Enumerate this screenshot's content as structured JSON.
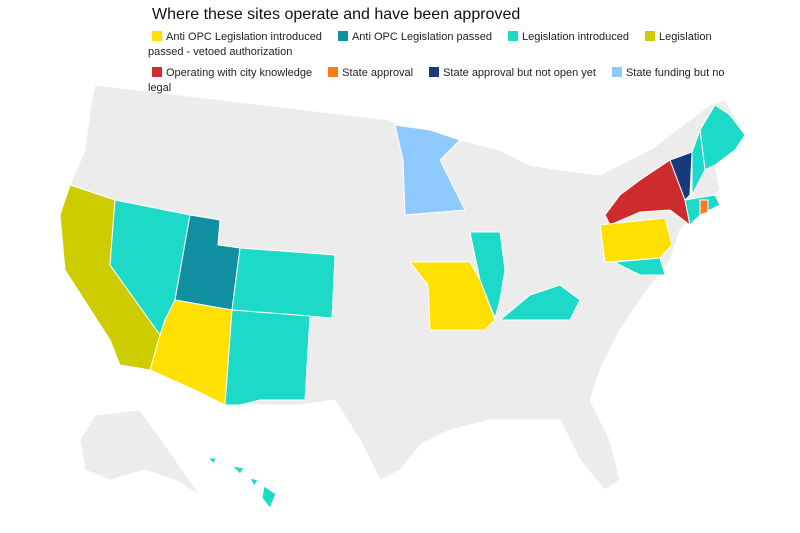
{
  "title": "Where these sites operate and have been approved",
  "legend": [
    {
      "label": "Anti OPC Legislation introduced",
      "color": "#ffe000"
    },
    {
      "label": "Anti OPC Legislation passed",
      "color": "#0f8fa0"
    },
    {
      "label": "Legislation introduced",
      "color": "#1dd9c8"
    },
    {
      "label": "Legislation passed - vetoed authorization",
      "color": "#cccc00"
    },
    {
      "label": "Operating with city knowledge",
      "color": "#cc2c2c"
    },
    {
      "label": "State approval",
      "color": "#ff7a1a"
    },
    {
      "label": "State approval but not open yet",
      "color": "#173a7a"
    },
    {
      "label": "State funding but no legal",
      "color": "#8ec9ff"
    }
  ]
}
